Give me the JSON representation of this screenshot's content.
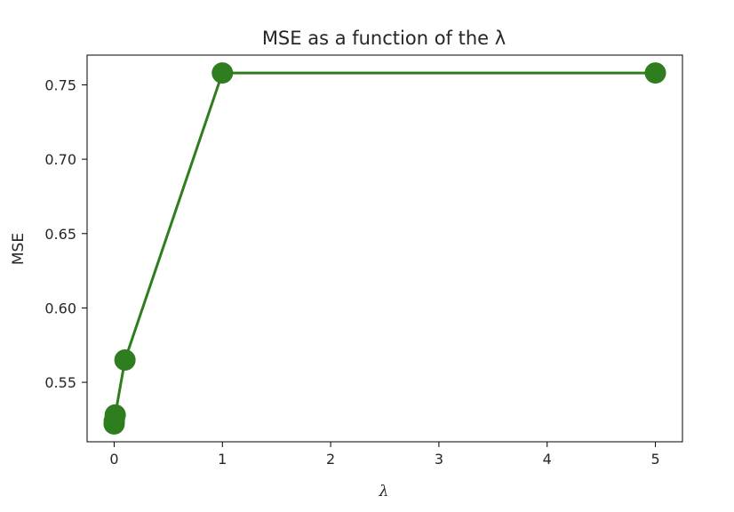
{
  "chart_data": {
    "type": "line",
    "title": "MSE as a function of the λ",
    "xlabel": "λ",
    "ylabel": "MSE",
    "xlim": [
      -0.25,
      5.25
    ],
    "ylim": [
      0.51,
      0.77
    ],
    "xticks": [
      0,
      1,
      2,
      3,
      4,
      5
    ],
    "yticks": [
      0.55,
      0.6,
      0.65,
      0.7,
      0.75
    ],
    "ytick_labels": [
      "0.55",
      "0.60",
      "0.65",
      "0.70",
      "0.75"
    ],
    "grid": false,
    "series": [
      {
        "color": "#2e7d1e",
        "marker": "circle",
        "x": [
          0,
          0.001,
          0.01,
          0.1,
          1,
          5
        ],
        "y": [
          0.522,
          0.524,
          0.528,
          0.565,
          0.758,
          0.758
        ]
      }
    ]
  }
}
